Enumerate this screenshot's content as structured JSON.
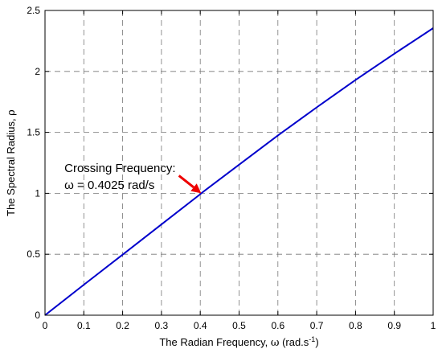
{
  "chart_data": {
    "type": "line",
    "title": "",
    "xlabel_main": "The Radian Frequency, ",
    "xlabel_symbol": "ω",
    "xlabel_unit_prefix": " (rad.s",
    "xlabel_unit_exp": "-1",
    "xlabel_unit_suffix": ")",
    "ylabel_main": "The Spectral Radius, ",
    "ylabel_symbol": "ρ",
    "xlim": [
      0,
      1
    ],
    "ylim": [
      0,
      2.5
    ],
    "x_ticks": [
      0,
      0.1,
      0.2,
      0.3,
      0.4,
      0.5,
      0.6,
      0.7,
      0.8,
      0.9,
      1
    ],
    "x_tick_labels": [
      "0",
      "0.1",
      "0.2",
      "0.3",
      "0.4",
      "0.5",
      "0.6",
      "0.7",
      "0.8",
      "0.9",
      "1"
    ],
    "y_ticks": [
      0,
      0.5,
      1,
      1.5,
      2,
      2.5
    ],
    "y_tick_labels": [
      "0",
      "0.5",
      "1",
      "1.5",
      "2",
      "2.5"
    ],
    "grid": true,
    "series": [
      {
        "color": "#0000cc",
        "x": [
          0,
          0.1,
          0.2,
          0.3,
          0.4,
          0.4025,
          0.5,
          0.6,
          0.7,
          0.8,
          0.9,
          1.0
        ],
        "y": [
          0,
          0.25,
          0.497,
          0.745,
          0.993,
          1.0,
          1.235,
          1.475,
          1.705,
          1.93,
          2.145,
          2.355
        ]
      }
    ],
    "annotation": {
      "line1": "Crossing Frequency:",
      "line2": "ω = 0.4025 rad/s",
      "text_x": 0.05,
      "text_y": 1.175,
      "arrow_from": [
        0.345,
        1.145
      ],
      "arrow_to": [
        0.4025,
        1.0
      ],
      "arrow_color": "#ee0000"
    }
  }
}
